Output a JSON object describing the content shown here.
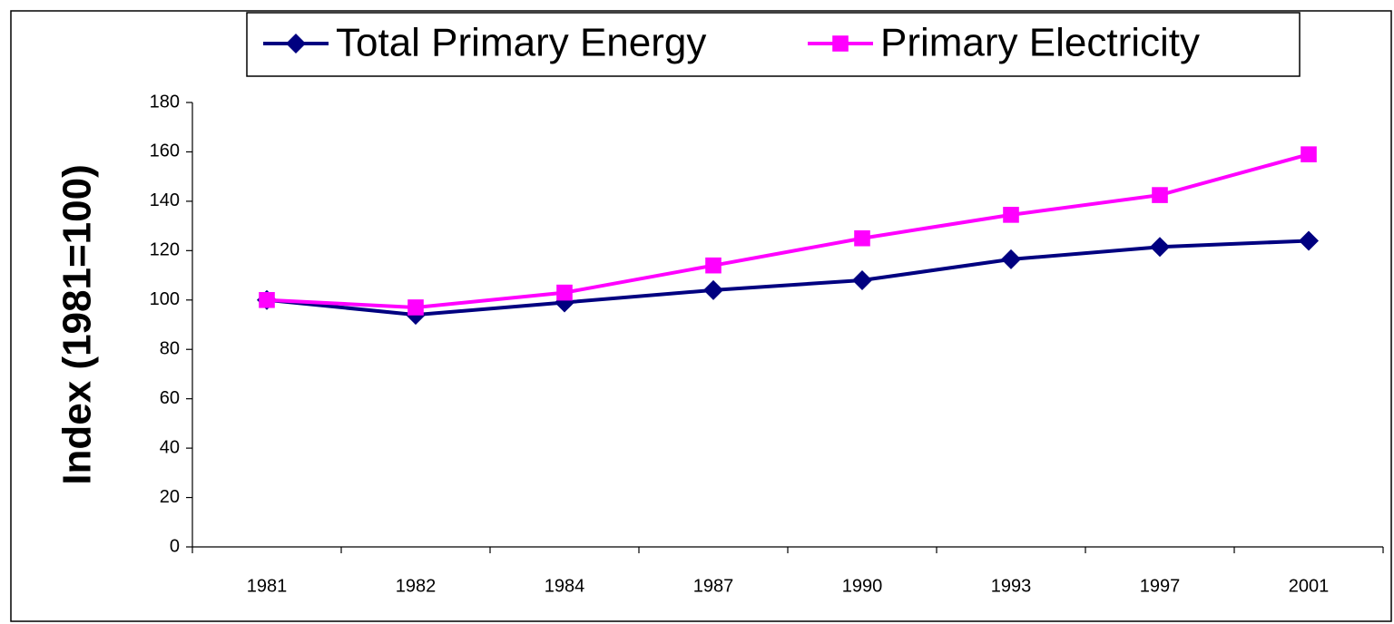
{
  "chart_data": {
    "type": "line",
    "ylabel": "Index (1981=100)",
    "categories": [
      "1981",
      "1982",
      "1984",
      "1987",
      "1990",
      "1993",
      "1997",
      "2001"
    ],
    "series": [
      {
        "name": "Total Primary Energy",
        "color": "#000080",
        "marker": "diamond",
        "values": [
          100,
          94,
          99,
          104,
          108,
          116.5,
          121.5,
          124
        ]
      },
      {
        "name": "Primary Electricity",
        "color": "#ff00ff",
        "marker": "square",
        "values": [
          100,
          97,
          103,
          114,
          125,
          134.5,
          142.5,
          159
        ]
      }
    ],
    "ylim": [
      0,
      180
    ],
    "yticks": [
      0,
      20,
      40,
      60,
      80,
      100,
      120,
      140,
      160,
      180
    ],
    "legend": "top"
  }
}
